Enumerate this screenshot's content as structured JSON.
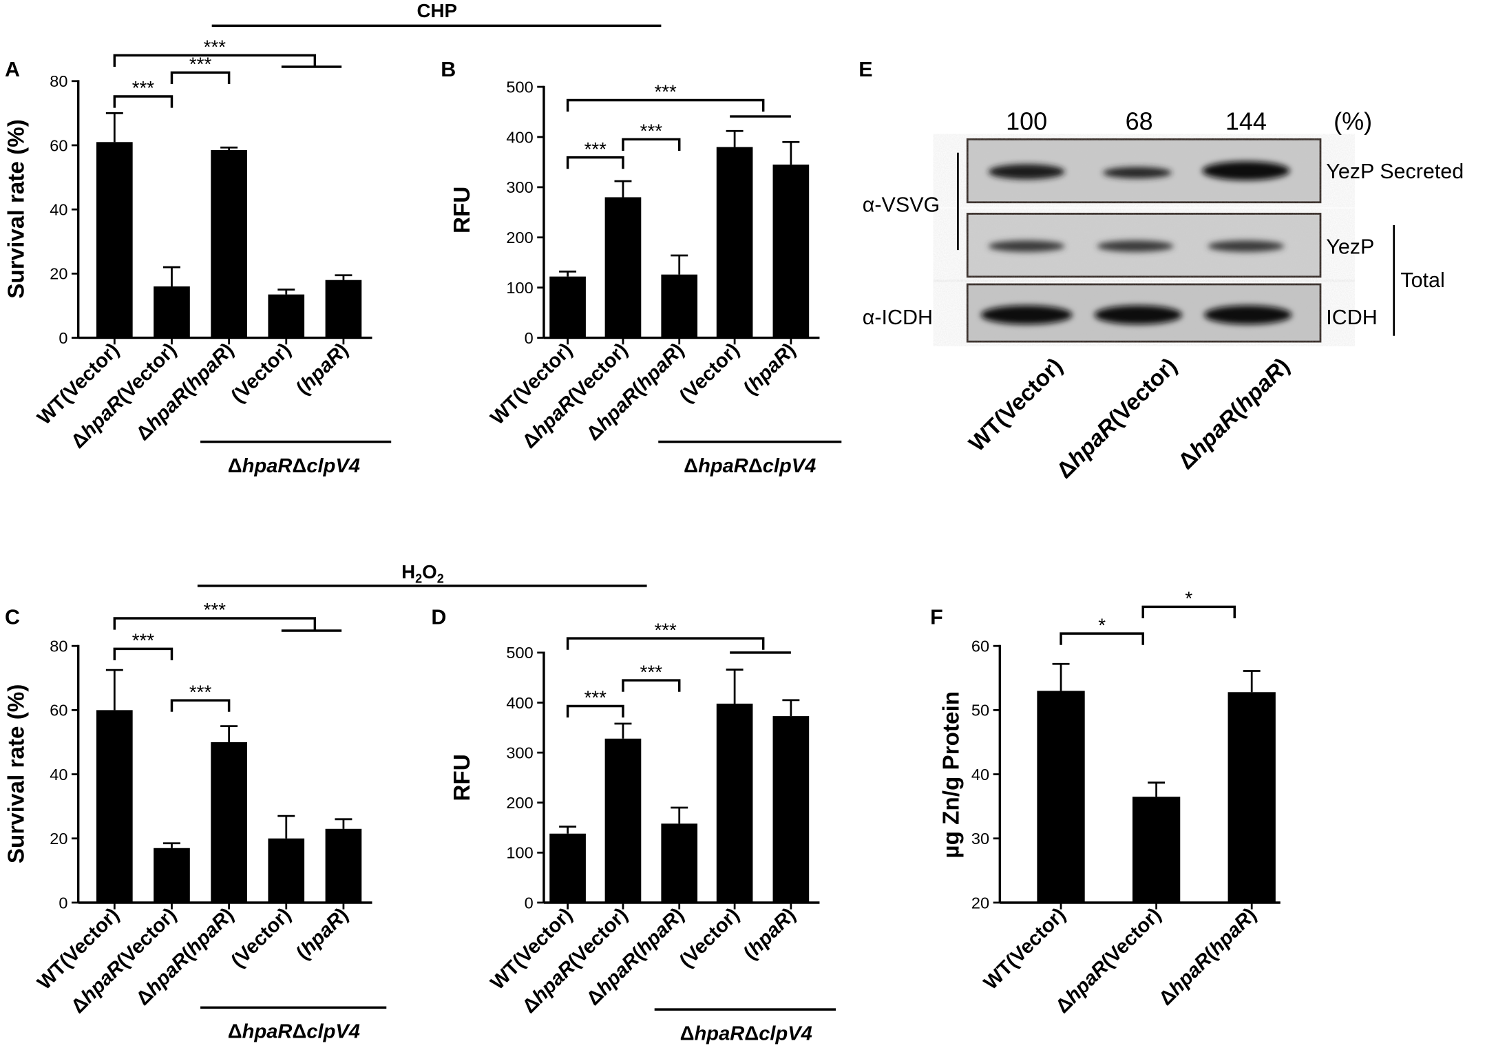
{
  "figure": {
    "group_title_top": "CHP",
    "group_title_bottom_main": "H",
    "group_title_bottom_sub1": "2",
    "group_title_bottom_mid": "O",
    "group_title_bottom_sub2": "2"
  },
  "chart_data": [
    {
      "panel": "A",
      "type": "bar",
      "ylabel": "Survival rate (%)",
      "ylim": [
        0,
        80
      ],
      "yticks": [
        "0",
        "20",
        "40",
        "60",
        "80"
      ],
      "categories": [
        {
          "prefix": "WT(Vector)",
          "ital": "",
          "suffix": ""
        },
        {
          "prefix": "Δ",
          "ital": "hpaR",
          "suffix": "(Vector)"
        },
        {
          "prefix": "Δ",
          "ital": "hpaR",
          "suffix": "(",
          "ital2": "hpaR",
          "suffix2": ")"
        },
        {
          "prefix": "(Vector)",
          "ital": "",
          "suffix": ""
        },
        {
          "prefix": "(",
          "ital": "hpaR",
          "suffix": ")"
        }
      ],
      "group_label": {
        "d1": "Δ",
        "i1": "hpaR",
        "d2": "Δ",
        "i2": "clpV4"
      },
      "values": [
        61,
        16,
        58.5,
        13.5,
        18
      ],
      "errors": [
        9,
        6,
        0.8,
        1.5,
        1.5
      ],
      "significance": [
        "***",
        "***",
        "***"
      ]
    },
    {
      "panel": "B",
      "type": "bar",
      "ylabel": "RFU",
      "ylim": [
        0,
        500
      ],
      "yticks": [
        "0",
        "100",
        "200",
        "300",
        "400",
        "500"
      ],
      "categories": [
        {
          "prefix": "WT(Vector)",
          "ital": "",
          "suffix": ""
        },
        {
          "prefix": "Δ",
          "ital": "hpaR",
          "suffix": "(Vector)"
        },
        {
          "prefix": "Δ",
          "ital": "hpaR",
          "suffix": "(",
          "ital2": "hpaR",
          "suffix2": ")"
        },
        {
          "prefix": "(Vector)",
          "ital": "",
          "suffix": ""
        },
        {
          "prefix": "(",
          "ital": "hpaR",
          "suffix": ")"
        }
      ],
      "group_label": {
        "d1": "Δ",
        "i1": "hpaR",
        "d2": "Δ",
        "i2": "clpV4"
      },
      "values": [
        122,
        280,
        126,
        380,
        345
      ],
      "errors": [
        10,
        32,
        38,
        32,
        45
      ],
      "significance": [
        "***",
        "***",
        "***"
      ]
    },
    {
      "panel": "C",
      "type": "bar",
      "ylabel": "Survival rate (%)",
      "ylim": [
        0,
        80
      ],
      "yticks": [
        "0",
        "20",
        "40",
        "60",
        "80"
      ],
      "categories": [
        {
          "prefix": "WT(Vector)",
          "ital": "",
          "suffix": ""
        },
        {
          "prefix": "Δ",
          "ital": "hpaR",
          "suffix": "(Vector)"
        },
        {
          "prefix": "Δ",
          "ital": "hpaR",
          "suffix": "(",
          "ital2": "hpaR",
          "suffix2": ")"
        },
        {
          "prefix": "(Vector)",
          "ital": "",
          "suffix": ""
        },
        {
          "prefix": "(",
          "ital": "hpaR",
          "suffix": ")"
        }
      ],
      "group_label": {
        "d1": "Δ",
        "i1": "hpaR",
        "d2": "Δ",
        "i2": "clpV4"
      },
      "values": [
        60,
        17,
        50,
        20,
        23
      ],
      "errors": [
        12.5,
        1.5,
        5,
        7,
        3
      ],
      "significance": [
        "***",
        "***",
        "***"
      ]
    },
    {
      "panel": "D",
      "type": "bar",
      "ylabel": "RFU",
      "ylim": [
        0,
        500
      ],
      "yticks": [
        "0",
        "100",
        "200",
        "300",
        "400",
        "500"
      ],
      "categories": [
        {
          "prefix": "WT(Vector)",
          "ital": "",
          "suffix": ""
        },
        {
          "prefix": "Δ",
          "ital": "hpaR",
          "suffix": "(Vector)"
        },
        {
          "prefix": "Δ",
          "ital": "hpaR",
          "suffix": "(",
          "ital2": "hpaR",
          "suffix2": ")"
        },
        {
          "prefix": "(Vector)",
          "ital": "",
          "suffix": ""
        },
        {
          "prefix": "(",
          "ital": "hpaR",
          "suffix": ")"
        }
      ],
      "group_label": {
        "d1": "Δ",
        "i1": "hpaR",
        "d2": "Δ",
        "i2": "clpV4"
      },
      "values": [
        138,
        328,
        158,
        398,
        373
      ],
      "errors": [
        14,
        30,
        32,
        68,
        32
      ],
      "significance": [
        "***",
        "***",
        "***"
      ]
    },
    {
      "panel": "F",
      "type": "bar",
      "ylabel": "µg Zn/g Protein",
      "ylim": [
        20,
        60
      ],
      "yticks": [
        "20",
        "30",
        "40",
        "50",
        "60"
      ],
      "categories": [
        {
          "prefix": "WT(Vector)",
          "ital": "",
          "suffix": ""
        },
        {
          "prefix": "Δ",
          "ital": "hpaR",
          "suffix": "(Vector)"
        },
        {
          "prefix": "Δ",
          "ital": "hpaR",
          "suffix": "(",
          "ital2": "hpaR",
          "suffix2": ")"
        }
      ],
      "values": [
        53,
        36.5,
        52.8
      ],
      "errors": [
        4.2,
        2.2,
        3.3
      ],
      "significance": [
        "*",
        "*"
      ]
    }
  ],
  "blot": {
    "panel": "E",
    "percent_values": [
      "100",
      "68",
      "144"
    ],
    "percent_unit": "(%)",
    "antibody_vsvg": "α-VSVG",
    "antibody_icdh": "α-ICDH",
    "band_yezp_secreted": "YezP Secreted",
    "band_yezp_total": "YezP",
    "band_icdh": "ICDH",
    "total_label": "Total",
    "lanes": [
      {
        "prefix": "WT(Vector)",
        "ital": "",
        "suffix": ""
      },
      {
        "prefix": "Δ",
        "ital": "hpaR",
        "suffix": "(Vector)"
      },
      {
        "prefix": "Δ",
        "ital": "hpaR",
        "suffix": "(",
        "ital2": "hpaR",
        "suffix2": ")"
      }
    ]
  }
}
